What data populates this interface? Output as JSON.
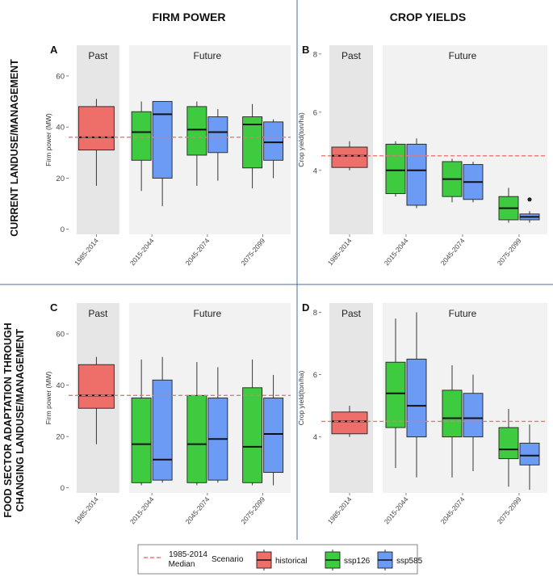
{
  "figure": {
    "column_titles": [
      "FIRM POWER",
      "CROP YIELDS"
    ],
    "row_titles": [
      [
        "CURRENT LANDUSE/MANAGEMENT"
      ],
      [
        "FOOD SECTOR ADAPTATION THROUGH",
        "CHANGING LANDUSE/MANAGEMENT"
      ]
    ],
    "period_labels": {
      "past": "Past",
      "future": "Future"
    }
  },
  "legend": {
    "median_label_line1": "1985-2014",
    "median_label_line2": "Median",
    "scenario_title": "Scenario",
    "entries": [
      {
        "name": "historical",
        "color": "#EE6E6A"
      },
      {
        "name": "ssp126",
        "color": "#3FCB3F"
      },
      {
        "name": "ssp585",
        "color": "#6B9BF5"
      }
    ],
    "median_line_color": "#E27A76"
  },
  "chart_data": [
    {
      "panel": "A",
      "type": "box",
      "ylabel": "Firm power (MW)",
      "ylim": [
        -2,
        72
      ],
      "yticks": [
        "0",
        "20",
        "40",
        "60"
      ],
      "ytick_values": [
        0,
        20,
        40,
        60
      ],
      "categories": [
        "1985-2014",
        "2015-2044",
        "2045-2074",
        "2075-2099"
      ],
      "hline": 36,
      "series": [
        {
          "name": "historical",
          "boxes": [
            {
              "cat": 0,
              "min": 17,
              "q1": 31,
              "median": 36,
              "q3": 48,
              "max": 51
            }
          ]
        },
        {
          "name": "ssp126",
          "boxes": [
            {
              "cat": 1,
              "min": 15,
              "q1": 27,
              "median": 38,
              "q3": 46,
              "max": 50
            },
            {
              "cat": 2,
              "min": 17,
              "q1": 29,
              "median": 39,
              "q3": 48,
              "max": 50
            },
            {
              "cat": 3,
              "min": 16,
              "q1": 24,
              "median": 41,
              "q3": 44,
              "max": 49
            }
          ]
        },
        {
          "name": "ssp585",
          "boxes": [
            {
              "cat": 1,
              "min": 9,
              "q1": 20,
              "median": 45,
              "q3": 50,
              "max": 50
            },
            {
              "cat": 2,
              "min": 19,
              "q1": 30,
              "median": 38,
              "q3": 44,
              "max": 47
            },
            {
              "cat": 3,
              "min": 20,
              "q1": 27,
              "median": 34,
              "q3": 42,
              "max": 43
            }
          ]
        }
      ]
    },
    {
      "panel": "B",
      "type": "box",
      "ylabel": "Crop yield(ton/ha)",
      "ylim": [
        1.8,
        8.3
      ],
      "yticks": [
        "4",
        "6",
        "8"
      ],
      "ytick_values": [
        4,
        6,
        8
      ],
      "categories": [
        "1985-2014",
        "2015-2044",
        "2045-2074",
        "2075-2099"
      ],
      "hline": 4.5,
      "series": [
        {
          "name": "historical",
          "boxes": [
            {
              "cat": 0,
              "min": 4.0,
              "q1": 4.1,
              "median": 4.5,
              "q3": 4.8,
              "max": 5.0
            }
          ]
        },
        {
          "name": "ssp126",
          "boxes": [
            {
              "cat": 1,
              "min": 3.1,
              "q1": 3.2,
              "median": 4.0,
              "q3": 4.9,
              "max": 5.0
            },
            {
              "cat": 2,
              "min": 2.9,
              "q1": 3.1,
              "median": 3.7,
              "q3": 4.3,
              "max": 4.4
            },
            {
              "cat": 3,
              "min": 2.2,
              "q1": 2.3,
              "median": 2.7,
              "q3": 3.1,
              "max": 3.4
            }
          ]
        },
        {
          "name": "ssp585",
          "boxes": [
            {
              "cat": 1,
              "min": 2.7,
              "q1": 2.8,
              "median": 4.0,
              "q3": 4.9,
              "max": 5.1
            },
            {
              "cat": 2,
              "min": 2.9,
              "q1": 3.0,
              "median": 3.6,
              "q3": 4.2,
              "max": 4.3
            },
            {
              "cat": 3,
              "min": 2.2,
              "q1": 2.3,
              "median": 2.4,
              "q3": 2.5,
              "max": 2.6,
              "outliers": [
                3.0
              ]
            }
          ]
        }
      ]
    },
    {
      "panel": "C",
      "type": "box",
      "ylabel": "Firm power (MW)",
      "ylim": [
        -2,
        72
      ],
      "yticks": [
        "0",
        "20",
        "40",
        "60"
      ],
      "ytick_values": [
        0,
        20,
        40,
        60
      ],
      "categories": [
        "1985-2014",
        "2015-2044",
        "2045-2074",
        "2075-2099"
      ],
      "hline": 36,
      "series": [
        {
          "name": "historical",
          "boxes": [
            {
              "cat": 0,
              "min": 17,
              "q1": 31,
              "median": 36,
              "q3": 48,
              "max": 51
            }
          ]
        },
        {
          "name": "ssp126",
          "boxes": [
            {
              "cat": 1,
              "min": 1,
              "q1": 2,
              "median": 17,
              "q3": 35,
              "max": 50
            },
            {
              "cat": 2,
              "min": 1,
              "q1": 2,
              "median": 17,
              "q3": 36,
              "max": 49
            },
            {
              "cat": 3,
              "min": 1,
              "q1": 2,
              "median": 16,
              "q3": 39,
              "max": 50
            }
          ]
        },
        {
          "name": "ssp585",
          "boxes": [
            {
              "cat": 1,
              "min": 2,
              "q1": 3,
              "median": 11,
              "q3": 42,
              "max": 51
            },
            {
              "cat": 2,
              "min": 2,
              "q1": 3,
              "median": 19,
              "q3": 35,
              "max": 47
            },
            {
              "cat": 3,
              "min": 1,
              "q1": 6,
              "median": 21,
              "q3": 35,
              "max": 44
            }
          ]
        }
      ]
    },
    {
      "panel": "D",
      "type": "box",
      "ylabel": "Crop yield(ton/ha)",
      "ylim": [
        2.2,
        8.3
      ],
      "yticks": [
        "4",
        "6",
        "8"
      ],
      "ytick_values": [
        4,
        6,
        8
      ],
      "categories": [
        "1985-2014",
        "2015-2044",
        "2045-2074",
        "2075-2099"
      ],
      "hline": 4.5,
      "series": [
        {
          "name": "historical",
          "boxes": [
            {
              "cat": 0,
              "min": 4.0,
              "q1": 4.1,
              "median": 4.5,
              "q3": 4.8,
              "max": 5.0
            }
          ]
        },
        {
          "name": "ssp126",
          "boxes": [
            {
              "cat": 1,
              "min": 3.0,
              "q1": 4.3,
              "median": 5.4,
              "q3": 6.4,
              "max": 7.8
            },
            {
              "cat": 2,
              "min": 2.7,
              "q1": 4.0,
              "median": 4.6,
              "q3": 5.5,
              "max": 6.3
            },
            {
              "cat": 3,
              "min": 2.4,
              "q1": 3.3,
              "median": 3.6,
              "q3": 4.3,
              "max": 4.9
            }
          ]
        },
        {
          "name": "ssp585",
          "boxes": [
            {
              "cat": 1,
              "min": 2.7,
              "q1": 4.0,
              "median": 5.0,
              "q3": 6.5,
              "max": 8.0
            },
            {
              "cat": 2,
              "min": 2.9,
              "q1": 4.0,
              "median": 4.6,
              "q3": 5.4,
              "max": 6.0
            },
            {
              "cat": 3,
              "min": 2.3,
              "q1": 3.1,
              "median": 3.4,
              "q3": 3.8,
              "max": 4.4
            }
          ]
        }
      ]
    }
  ]
}
